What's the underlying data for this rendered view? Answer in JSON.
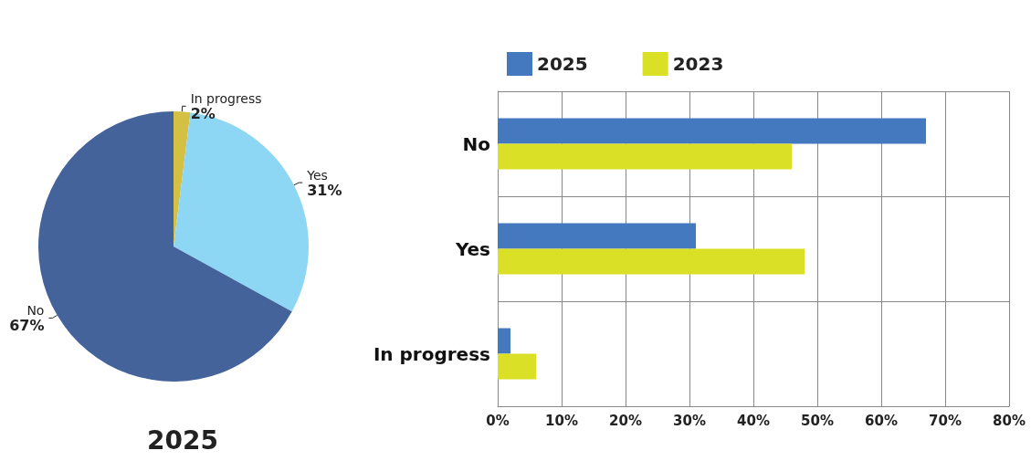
{
  "chart_data": [
    {
      "type": "pie",
      "title": "2025",
      "categories": [
        "In progress",
        "Yes",
        "No"
      ],
      "values": [
        2,
        31,
        67
      ],
      "colors": [
        "#d4c043",
        "#8dd7f5",
        "#44639a"
      ],
      "value_labels": [
        "2%",
        "31%",
        "67%"
      ],
      "legend": false
    },
    {
      "type": "bar",
      "orientation": "horizontal",
      "categories": [
        "No",
        "Yes",
        "In progress"
      ],
      "series": [
        {
          "name": "2025",
          "color": "#4579bf",
          "values": [
            67,
            31,
            2
          ]
        },
        {
          "name": "2023",
          "color": "#d9e026",
          "values": [
            46,
            48,
            6
          ]
        }
      ],
      "xlim": [
        0,
        80
      ],
      "xticks": [
        {
          "value": 0,
          "label": "0%"
        },
        {
          "value": 10,
          "label": "10%"
        },
        {
          "value": 20,
          "label": "20%"
        },
        {
          "value": 30,
          "label": "30%"
        },
        {
          "value": 40,
          "label": "40%"
        },
        {
          "value": 50,
          "label": "50%"
        },
        {
          "value": 60,
          "label": "60%"
        },
        {
          "value": 70,
          "label": "70%"
        },
        {
          "value": 80,
          "label": "80%"
        }
      ],
      "grid": true,
      "legend": "top"
    }
  ]
}
